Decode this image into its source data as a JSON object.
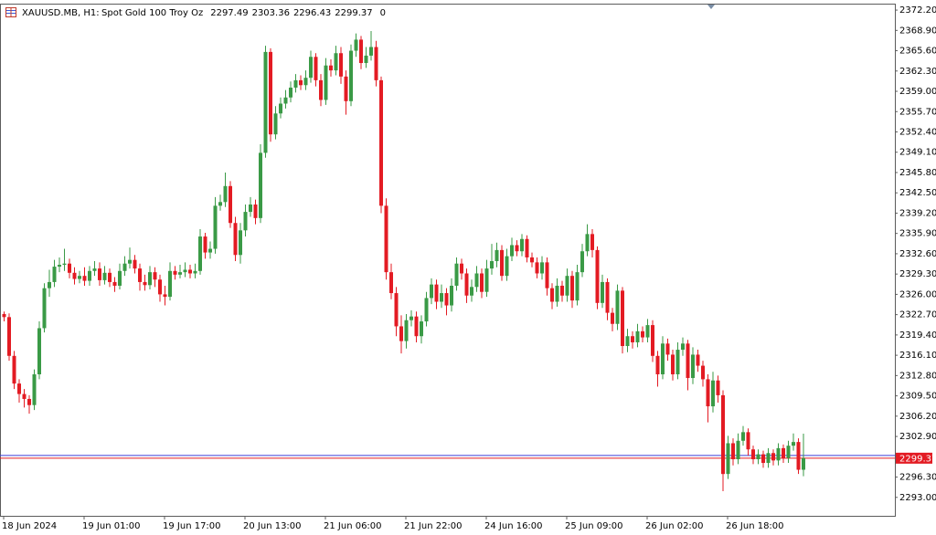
{
  "chart_data": {
    "type": "candlestick",
    "header": {
      "symbol": "XAUUSD.MB, H1:",
      "description": "Spot Gold 100 Troy Oz",
      "volume": 0
    },
    "categories": [
      "18 Jun 2024",
      null,
      null,
      null,
      null,
      null,
      null,
      null,
      null,
      null,
      null,
      null,
      null,
      null,
      null,
      null,
      "19 Jun 01:00",
      null,
      null,
      null,
      null,
      null,
      null,
      null,
      null,
      null,
      null,
      null,
      null,
      null,
      null,
      null,
      "19 Jun 17:00",
      null,
      null,
      null,
      null,
      null,
      null,
      null,
      null,
      null,
      null,
      null,
      null,
      null,
      null,
      null,
      "20 Jun 13:00",
      null,
      null,
      null,
      null,
      null,
      null,
      null,
      null,
      null,
      null,
      null,
      null,
      null,
      null,
      null,
      "21 Jun 06:00",
      null,
      null,
      null,
      null,
      null,
      null,
      null,
      null,
      null,
      null,
      null,
      null,
      null,
      null,
      null,
      "21 Jun 22:00",
      null,
      null,
      null,
      null,
      null,
      null,
      null,
      null,
      null,
      null,
      null,
      null,
      null,
      null,
      null,
      "24 Jun 16:00",
      null,
      null,
      null,
      null,
      null,
      null,
      null,
      null,
      null,
      null,
      null,
      null,
      null,
      null,
      null,
      "25 Jun 09:00",
      null,
      null,
      null,
      null,
      null,
      null,
      null,
      null,
      null,
      null,
      null,
      null,
      null,
      null,
      null,
      "26 Jun 02:00",
      null,
      null,
      null,
      null,
      null,
      null,
      null,
      null,
      null,
      null,
      null,
      null,
      null,
      null,
      null,
      "26 Jun 18:00",
      null,
      null,
      null,
      null,
      null,
      null,
      null,
      null,
      null,
      null,
      null,
      null,
      null,
      null,
      null
    ],
    "open": [
      2322.8,
      2322.3,
      2316.0,
      2311.5,
      2309.8,
      2309.0,
      2308.0,
      2313.0,
      2320.5,
      2327.0,
      2328.0,
      2330.5,
      2330.8,
      2331.0,
      2329.5,
      2328.5,
      2329.0,
      2328.2,
      2329.8,
      2330.2,
      2328.3,
      2329.5,
      2328.0,
      2327.4,
      2329.8,
      2331.0,
      2331.6,
      2330.2,
      2328.0,
      2327.5,
      2329.6,
      2328.4,
      2326.0,
      2325.6,
      2329.8,
      2329.2,
      2329.6,
      2330.0,
      2329.4,
      2329.8,
      2335.4,
      2332.8,
      2333.4,
      2340.4,
      2341.0,
      2343.6,
      2337.6,
      2332.4,
      2336.4,
      2339.4,
      2340.6,
      2338.4,
      2349.0,
      2365.4,
      2352.0,
      2355.4,
      2357.0,
      2358.0,
      2359.6,
      2360.8,
      2360.0,
      2361.2,
      2364.6,
      2360.8,
      2357.6,
      2363.2,
      2362.4,
      2365.2,
      2361.4,
      2357.4,
      2365.6,
      2367.4,
      2363.6,
      2364.8,
      2366.2,
      2360.8,
      2340.4,
      2329.6,
      2326.2,
      2320.8,
      2318.4,
      2321.8,
      2322.4,
      2319.2,
      2321.6,
      2325.4,
      2327.6,
      2324.8,
      2326.2,
      2324.2,
      2327.4,
      2331.0,
      2329.4,
      2325.8,
      2327.2,
      2329.4,
      2326.4,
      2330.2,
      2331.4,
      2333.2,
      2329.0,
      2332.2,
      2334.0,
      2333.0,
      2335.0,
      2332.0,
      2331.2,
      2329.4,
      2331.2,
      2327.0,
      2324.8,
      2327.4,
      2325.8,
      2329.0,
      2325.0,
      2329.6,
      2333.0,
      2335.8,
      2333.2,
      2324.6,
      2328.0,
      2323.0,
      2321.2,
      2326.6,
      2317.6,
      2319.2,
      2318.2,
      2320.0,
      2319.0,
      2321.0,
      2316.0,
      2313.0,
      2318.0,
      2316.2,
      2313.0,
      2317.0,
      2318.0,
      2312.4,
      2316.2,
      2314.4,
      2312.2,
      2307.8,
      2312.0,
      2309.6,
      2296.8,
      2301.8,
      2299.2,
      2302.2,
      2303.6,
      2300.8,
      2299.2,
      2300.0,
      2298.6,
      2300.2,
      2299.0,
      2301.0,
      2299.4,
      2301.4,
      2302.0,
      2297.49
    ],
    "high": [
      2323.2,
      2322.9,
      2316.8,
      2312.2,
      2310.6,
      2309.6,
      2313.8,
      2321.6,
      2327.8,
      2330.0,
      2331.6,
      2332.0,
      2333.4,
      2331.8,
      2330.4,
      2329.8,
      2330.4,
      2330.6,
      2331.4,
      2331.2,
      2330.6,
      2330.2,
      2328.8,
      2331.0,
      2332.2,
      2333.6,
      2332.4,
      2331.0,
      2329.2,
      2330.6,
      2330.4,
      2329.2,
      2327.4,
      2331.2,
      2330.6,
      2330.8,
      2331.2,
      2330.8,
      2331.0,
      2336.6,
      2336.0,
      2334.6,
      2341.8,
      2342.2,
      2345.8,
      2344.4,
      2338.6,
      2337.6,
      2340.6,
      2341.8,
      2341.4,
      2350.4,
      2366.4,
      2366.0,
      2356.6,
      2358.0,
      2359.2,
      2360.6,
      2361.8,
      2361.6,
      2362.4,
      2365.6,
      2365.2,
      2361.8,
      2364.4,
      2364.2,
      2366.4,
      2366.2,
      2362.4,
      2366.6,
      2368.4,
      2368.0,
      2366.2,
      2368.8,
      2367.2,
      2361.4,
      2341.6,
      2331.0,
      2327.2,
      2322.6,
      2322.8,
      2323.4,
      2323.2,
      2322.6,
      2326.4,
      2328.6,
      2328.4,
      2327.6,
      2327.0,
      2328.6,
      2332.0,
      2331.8,
      2330.2,
      2328.4,
      2330.6,
      2330.2,
      2331.6,
      2334.2,
      2334.4,
      2334.0,
      2333.4,
      2335.2,
      2334.8,
      2335.8,
      2335.6,
      2332.8,
      2332.0,
      2332.2,
      2332.0,
      2327.8,
      2328.6,
      2328.2,
      2330.2,
      2329.8,
      2330.8,
      2334.2,
      2337.4,
      2336.6,
      2333.8,
      2329.2,
      2328.6,
      2323.8,
      2327.6,
      2327.2,
      2320.4,
      2320.0,
      2321.2,
      2320.8,
      2322.0,
      2321.8,
      2316.8,
      2319.2,
      2318.8,
      2317.0,
      2318.2,
      2319.0,
      2318.6,
      2317.4,
      2317.0,
      2315.2,
      2313.0,
      2313.4,
      2312.8,
      2310.4,
      2303.0,
      2302.6,
      2303.4,
      2304.6,
      2304.2,
      2301.4,
      2300.8,
      2300.6,
      2301.0,
      2300.8,
      2301.8,
      2301.6,
      2302.2,
      2303.4,
      2302.6,
      2303.36
    ],
    "low": [
      2321.6,
      2315.2,
      2310.6,
      2308.4,
      2307.6,
      2306.6,
      2307.2,
      2312.2,
      2319.8,
      2325.6,
      2327.2,
      2329.6,
      2329.8,
      2328.6,
      2327.6,
      2327.8,
      2327.4,
      2327.4,
      2329.0,
      2327.4,
      2327.6,
      2327.2,
      2326.4,
      2326.8,
      2329.0,
      2330.2,
      2329.4,
      2326.6,
      2326.6,
      2326.8,
      2327.2,
      2324.8,
      2324.2,
      2325.0,
      2328.4,
      2328.6,
      2328.8,
      2328.6,
      2328.6,
      2329.2,
      2331.8,
      2331.8,
      2332.6,
      2339.6,
      2340.2,
      2336.8,
      2331.4,
      2331.0,
      2335.4,
      2338.6,
      2337.4,
      2337.6,
      2348.2,
      2350.8,
      2351.2,
      2354.6,
      2356.2,
      2357.2,
      2358.8,
      2359.2,
      2359.2,
      2360.4,
      2359.8,
      2356.6,
      2356.8,
      2361.4,
      2361.6,
      2360.2,
      2355.2,
      2356.6,
      2364.6,
      2362.6,
      2362.8,
      2364.0,
      2359.8,
      2339.2,
      2328.4,
      2325.2,
      2319.2,
      2316.4,
      2317.2,
      2320.8,
      2318.2,
      2318.0,
      2320.8,
      2324.4,
      2323.6,
      2323.8,
      2322.6,
      2323.2,
      2326.6,
      2328.4,
      2324.6,
      2324.8,
      2326.4,
      2325.4,
      2325.6,
      2329.2,
      2330.4,
      2328.2,
      2328.2,
      2331.4,
      2332.2,
      2332.2,
      2331.2,
      2330.4,
      2328.6,
      2328.4,
      2325.8,
      2323.6,
      2324.0,
      2324.8,
      2324.8,
      2323.8,
      2324.2,
      2328.8,
      2332.2,
      2332.0,
      2323.6,
      2323.8,
      2321.8,
      2320.0,
      2320.2,
      2316.4,
      2316.6,
      2317.2,
      2317.4,
      2318.2,
      2318.2,
      2315.0,
      2311.0,
      2312.2,
      2315.2,
      2312.0,
      2312.2,
      2316.0,
      2310.4,
      2311.4,
      2313.4,
      2311.0,
      2305.2,
      2306.8,
      2308.4,
      2294.0,
      2296.0,
      2298.2,
      2298.4,
      2301.4,
      2299.8,
      2298.4,
      2298.4,
      2297.8,
      2297.8,
      2298.2,
      2298.2,
      2298.6,
      2298.6,
      2300.6,
      2296.8,
      2296.43
    ],
    "close": [
      2322.3,
      2316.0,
      2311.5,
      2309.8,
      2309.0,
      2308.0,
      2313.0,
      2320.5,
      2327.0,
      2328.0,
      2330.5,
      2330.8,
      2331.0,
      2329.5,
      2328.5,
      2329.0,
      2328.2,
      2329.8,
      2330.2,
      2328.3,
      2329.5,
      2328.0,
      2327.4,
      2329.8,
      2331.0,
      2331.6,
      2330.2,
      2328.0,
      2327.5,
      2329.6,
      2328.4,
      2326.0,
      2325.6,
      2329.8,
      2329.2,
      2329.6,
      2330.0,
      2329.4,
      2329.8,
      2335.4,
      2332.8,
      2333.4,
      2340.4,
      2341.0,
      2343.6,
      2337.6,
      2332.4,
      2336.4,
      2339.4,
      2340.6,
      2338.4,
      2349.0,
      2365.4,
      2352.0,
      2355.4,
      2357.0,
      2358.0,
      2359.6,
      2360.8,
      2360.0,
      2361.2,
      2364.6,
      2360.8,
      2357.6,
      2363.2,
      2362.4,
      2365.2,
      2361.4,
      2357.4,
      2365.6,
      2367.4,
      2363.6,
      2364.8,
      2366.2,
      2360.8,
      2340.4,
      2329.6,
      2326.2,
      2320.8,
      2318.4,
      2321.8,
      2322.4,
      2319.2,
      2321.6,
      2325.4,
      2327.6,
      2324.8,
      2326.2,
      2324.2,
      2327.4,
      2331.0,
      2329.4,
      2325.8,
      2327.2,
      2329.4,
      2326.4,
      2330.2,
      2331.4,
      2333.2,
      2329.0,
      2332.2,
      2334.0,
      2333.0,
      2335.0,
      2332.0,
      2331.2,
      2329.4,
      2331.2,
      2327.0,
      2324.8,
      2327.4,
      2325.8,
      2329.0,
      2325.0,
      2329.6,
      2333.0,
      2335.8,
      2333.2,
      2324.6,
      2328.0,
      2323.0,
      2321.2,
      2326.6,
      2317.6,
      2319.2,
      2318.2,
      2320.0,
      2319.0,
      2321.0,
      2316.0,
      2313.0,
      2318.0,
      2316.2,
      2313.0,
      2317.0,
      2318.0,
      2312.4,
      2316.2,
      2314.4,
      2312.2,
      2307.8,
      2312.0,
      2309.6,
      2296.8,
      2301.8,
      2299.2,
      2302.2,
      2303.6,
      2300.8,
      2299.2,
      2300.0,
      2298.6,
      2300.2,
      2299.0,
      2301.0,
      2299.4,
      2301.4,
      2302.0,
      2297.49,
      2299.37
    ],
    "up_color": "#3a9a46",
    "down_color": "#e31b23",
    "bid": 2299.37,
    "bid_color": "#e31b23",
    "ask": 2299.82,
    "ask_color": "#3b3bd8",
    "ylim": [
      2290.0,
      2373.1
    ],
    "yticks": [
      {
        "value": 2372.2,
        "label": "2372.20"
      },
      {
        "value": 2368.9,
        "label": "2368.90"
      },
      {
        "value": 2365.6,
        "label": "2365.60"
      },
      {
        "value": 2362.3,
        "label": "2362.30"
      },
      {
        "value": 2359.0,
        "label": "2359.00"
      },
      {
        "value": 2355.7,
        "label": "2355.70"
      },
      {
        "value": 2352.4,
        "label": "2352.40"
      },
      {
        "value": 2349.1,
        "label": "2349.10"
      },
      {
        "value": 2345.8,
        "label": "2345.80"
      },
      {
        "value": 2342.5,
        "label": "2342.50"
      },
      {
        "value": 2339.2,
        "label": "2339.20"
      },
      {
        "value": 2335.9,
        "label": "2335.90"
      },
      {
        "value": 2332.6,
        "label": "2332.60"
      },
      {
        "value": 2329.3,
        "label": "2329.30"
      },
      {
        "value": 2326.0,
        "label": "2326.00"
      },
      {
        "value": 2322.7,
        "label": "2322.70"
      },
      {
        "value": 2319.4,
        "label": "2319.40"
      },
      {
        "value": 2316.1,
        "label": "2316.10"
      },
      {
        "value": 2312.8,
        "label": "2312.80"
      },
      {
        "value": 2309.5,
        "label": "2309.50"
      },
      {
        "value": 2306.2,
        "label": "2306.20"
      },
      {
        "value": 2302.9,
        "label": "2302.90"
      },
      {
        "value": 2296.3,
        "label": "2296.30"
      },
      {
        "value": 2293.0,
        "label": "2293.00"
      }
    ],
    "grid": false
  }
}
